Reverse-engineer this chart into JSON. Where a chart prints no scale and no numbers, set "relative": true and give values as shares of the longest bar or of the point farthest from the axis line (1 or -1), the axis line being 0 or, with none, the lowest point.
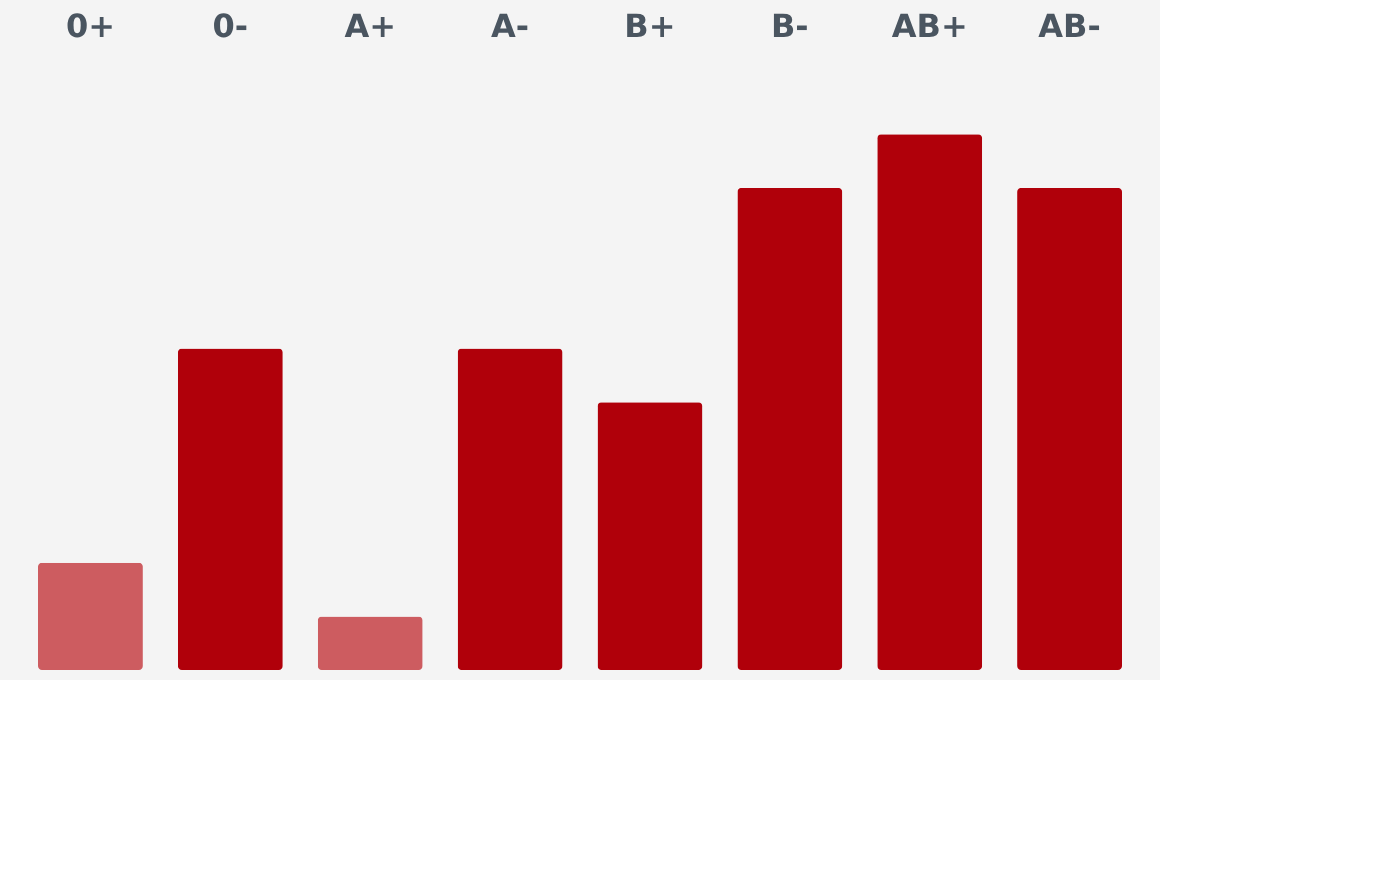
{
  "chart_data": {
    "type": "bar",
    "relative": true,
    "categories": [
      "0+",
      "0-",
      "A+",
      "A-",
      "B+",
      "B-",
      "AB+",
      "AB-"
    ],
    "values": [
      0.2,
      0.6,
      0.1,
      0.6,
      0.5,
      0.9,
      1,
      0.9
    ],
    "colors": [
      "#cd5c60",
      "#b0000a",
      "#cd5c60",
      "#b0000a",
      "#b0000a",
      "#b0000a",
      "#b0000a",
      "#b0000a"
    ]
  }
}
